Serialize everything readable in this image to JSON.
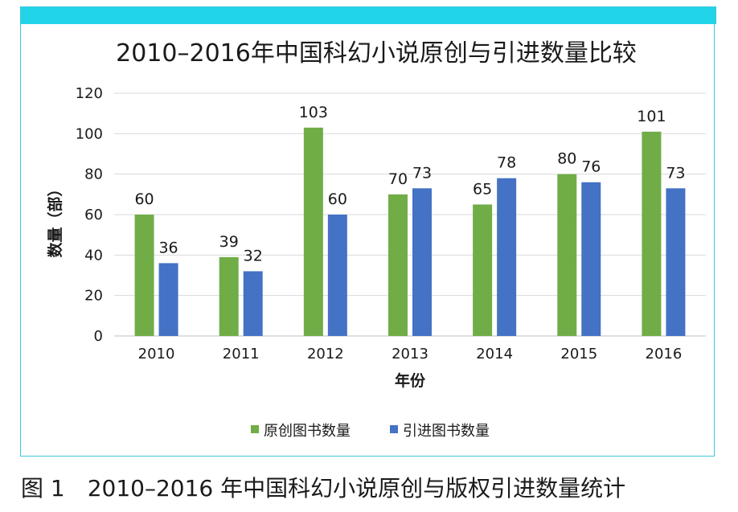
{
  "chart_data": {
    "type": "bar",
    "title": "2010–2016年中国科幻小说原创与引进数量比较",
    "xlabel": "年份",
    "ylabel": "数量（部）",
    "categories": [
      "2010",
      "2011",
      "2012",
      "2013",
      "2014",
      "2015",
      "2016"
    ],
    "ylim": [
      0,
      120
    ],
    "yticks": [
      0,
      20,
      40,
      60,
      80,
      100,
      120
    ],
    "grid": true,
    "legend_position": "bottom",
    "series": [
      {
        "name": "原创图书数量",
        "color": "#70ad47",
        "values": [
          60,
          39,
          103,
          70,
          65,
          80,
          101
        ]
      },
      {
        "name": "引进图书数量",
        "color": "#4472c4",
        "values": [
          36,
          32,
          60,
          73,
          78,
          76,
          73
        ]
      }
    ]
  },
  "caption": {
    "figure_number": "图 1",
    "text": "2010–2016 年中国科幻小说原创与版权引进数量统计"
  },
  "colors": {
    "header_band": "#22d4e8",
    "frame_border": "#3cc8dc"
  }
}
